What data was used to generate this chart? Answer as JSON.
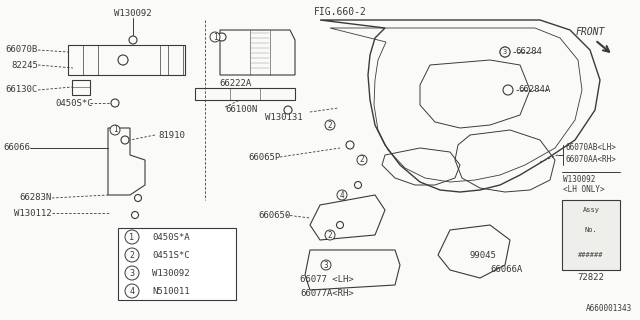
{
  "background_color": "#f5f5f0",
  "line_color": "#3a3a3a",
  "fig_label": "FIG.660-2",
  "doc_number": "A660001343",
  "figsize": [
    6.4,
    3.2
  ],
  "dpi": 100,
  "legend_items": [
    {
      "num": "1",
      "code": "0450S*A"
    },
    {
      "num": "2",
      "code": "0451S*C"
    },
    {
      "num": "3",
      "code": "W130092"
    },
    {
      "num": "4",
      "code": "N510011"
    }
  ]
}
